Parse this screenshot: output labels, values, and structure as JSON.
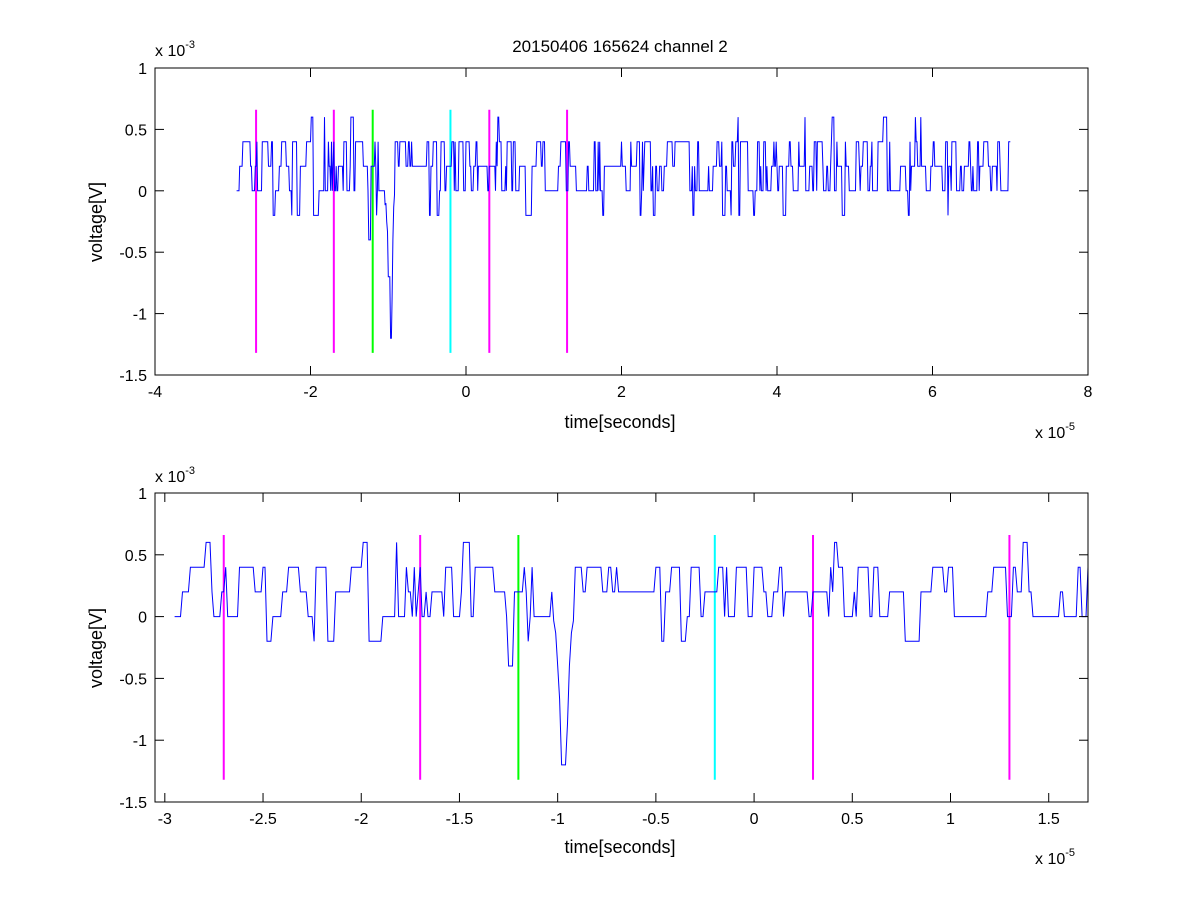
{
  "figure_title": "20150406 165624 channel 2",
  "colors": {
    "signal": "#0000ff",
    "marker_magenta": "#ff00ff",
    "marker_green": "#00ff00",
    "marker_cyan": "#00ffff",
    "axes": "#000000",
    "background": "#ffffff"
  },
  "chart_data": [
    {
      "type": "line",
      "title": "20150406 165624 channel 2",
      "xlabel": "time[seconds]",
      "ylabel": "voltage[V]",
      "x_exponent_label": "x 10",
      "x_exponent": "-5",
      "y_exponent_label": "x 10",
      "y_exponent": "-3",
      "xlim": [
        -4,
        8
      ],
      "ylim": [
        -1.5,
        1
      ],
      "xticks": [
        "-4",
        "-2",
        "0",
        "2",
        "4",
        "6",
        "8"
      ],
      "yticks": [
        "-1.5",
        "-1",
        "-0.5",
        "0",
        "0.5",
        "1"
      ],
      "grid": false,
      "trace_x_range": [
        -2.95,
        7.0
      ],
      "trace_baseline_levels": [
        0,
        0.2,
        0.4
      ],
      "trace_features": [
        {
          "x": -1.24,
          "y": -0.4
        },
        {
          "x": -0.97,
          "y": -1.2
        },
        {
          "x": -0.99,
          "y": -0.7
        },
        {
          "x": -1.98,
          "y": 0.6
        },
        {
          "x": 4.72,
          "y": 0.6
        }
      ],
      "markers": [
        {
          "x": -2.7,
          "ymin": -1.32,
          "ymax": 0.66,
          "color": "magenta"
        },
        {
          "x": -1.7,
          "ymin": -1.32,
          "ymax": 0.66,
          "color": "magenta"
        },
        {
          "x": -1.2,
          "ymin": -1.32,
          "ymax": 0.66,
          "color": "green"
        },
        {
          "x": -0.2,
          "ymin": -1.32,
          "ymax": 0.66,
          "color": "cyan"
        },
        {
          "x": 0.3,
          "ymin": -1.32,
          "ymax": 0.66,
          "color": "magenta"
        },
        {
          "x": 1.3,
          "ymin": -1.32,
          "ymax": 0.66,
          "color": "magenta"
        }
      ]
    },
    {
      "type": "line",
      "title": "",
      "xlabel": "time[seconds]",
      "ylabel": "voltage[V]",
      "x_exponent_label": "x 10",
      "x_exponent": "-5",
      "y_exponent_label": "x 10",
      "y_exponent": "-3",
      "xlim": [
        -3.05,
        1.7
      ],
      "ylim": [
        -1.5,
        1
      ],
      "xticks": [
        "-3",
        "-2.5",
        "-2",
        "-1.5",
        "-1",
        "-0.5",
        "0",
        "0.5",
        "1",
        "1.5"
      ],
      "xtick_values": [
        -3,
        -2.5,
        -2,
        -1.5,
        -1,
        -0.5,
        0,
        0.5,
        1,
        1.5
      ],
      "yticks": [
        "-1.5",
        "-1",
        "-0.5",
        "0",
        "0.5",
        "1"
      ],
      "grid": false,
      "trace_x_range": [
        -2.95,
        1.7
      ],
      "trace_baseline_levels": [
        0,
        0.2,
        0.4
      ],
      "trace_features": [
        {
          "x": -1.24,
          "y": -0.4
        },
        {
          "x": -0.97,
          "y": -1.2
        },
        {
          "x": -1.98,
          "y": 0.6
        },
        {
          "x": -2.78,
          "y": 0.6
        },
        {
          "x": 1.38,
          "y": 0.6
        }
      ],
      "markers": [
        {
          "x": -2.7,
          "ymin": -1.32,
          "ymax": 0.66,
          "color": "magenta"
        },
        {
          "x": -1.7,
          "ymin": -1.32,
          "ymax": 0.66,
          "color": "magenta"
        },
        {
          "x": -1.2,
          "ymin": -1.32,
          "ymax": 0.66,
          "color": "green"
        },
        {
          "x": -0.2,
          "ymin": -1.32,
          "ymax": 0.66,
          "color": "cyan"
        },
        {
          "x": 0.3,
          "ymin": -1.32,
          "ymax": 0.66,
          "color": "magenta"
        },
        {
          "x": 1.3,
          "ymin": -1.32,
          "ymax": 0.66,
          "color": "magenta"
        }
      ]
    }
  ]
}
